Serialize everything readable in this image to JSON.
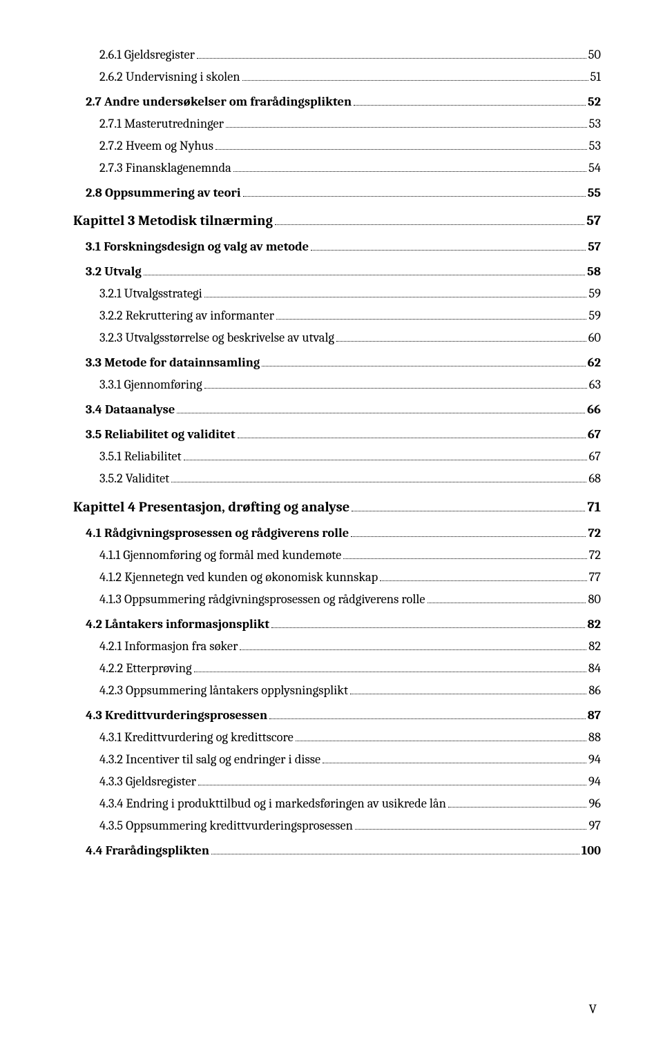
{
  "page_footer": "V",
  "toc": [
    {
      "level": 2,
      "label": "2.6.1 Gjeldsregister",
      "page": "50"
    },
    {
      "level": 2,
      "label": "2.6.2 Undervisning i skolen",
      "page": "51"
    },
    {
      "level": 1,
      "label": "2.7 Andre undersøkelser om frarådingsplikten",
      "page": "52"
    },
    {
      "level": 2,
      "label": "2.7.1 Masterutredninger",
      "page": "53"
    },
    {
      "level": 2,
      "label": "2.7.2 Hveem og Nyhus",
      "page": "53"
    },
    {
      "level": 2,
      "label": "2.7.3 Finansklagenemnda",
      "page": "54"
    },
    {
      "level": 1,
      "label": "2.8 Oppsummering av teori",
      "page": "55"
    },
    {
      "level": 0,
      "label": "Kapittel 3 Metodisk tilnærming",
      "page": "57"
    },
    {
      "level": 1,
      "label": "3.1 Forskningsdesign og valg av metode",
      "page": "57"
    },
    {
      "level": 1,
      "label": "3.2 Utvalg",
      "page": "58"
    },
    {
      "level": 2,
      "label": "3.2.1 Utvalgsstrategi",
      "page": "59"
    },
    {
      "level": 2,
      "label": "3.2.2 Rekruttering av informanter",
      "page": "59"
    },
    {
      "level": 2,
      "label": "3.2.3 Utvalgsstørrelse og beskrivelse av utvalg",
      "page": "60"
    },
    {
      "level": 1,
      "label": "3.3 Metode for datainnsamling",
      "page": "62"
    },
    {
      "level": 2,
      "label": "3.3.1 Gjennomføring",
      "page": "63"
    },
    {
      "level": 1,
      "label": "3.4 Dataanalyse",
      "page": "66"
    },
    {
      "level": 1,
      "label": "3.5 Reliabilitet og validitet",
      "page": "67"
    },
    {
      "level": 2,
      "label": "3.5.1 Reliabilitet",
      "page": "67"
    },
    {
      "level": 2,
      "label": "3.5.2 Validitet",
      "page": "68"
    },
    {
      "level": 0,
      "label": "Kapittel 4 Presentasjon, drøfting og analyse",
      "page": "71"
    },
    {
      "level": 1,
      "label": "4.1 Rådgivningsprosessen og rådgiverens rolle",
      "page": "72"
    },
    {
      "level": 2,
      "label": "4.1.1 Gjennomføring og formål med kundemøte",
      "page": "72"
    },
    {
      "level": 2,
      "label": "4.1.2 Kjennetegn ved kunden og økonomisk kunnskap",
      "page": "77"
    },
    {
      "level": 2,
      "label": "4.1.3 Oppsummering rådgivningsprosessen og rådgiverens rolle",
      "page": "80"
    },
    {
      "level": 1,
      "label": "4.2 Låntakers informasjonsplikt",
      "page": "82"
    },
    {
      "level": 2,
      "label": "4.2.1 Informasjon fra søker",
      "page": "82"
    },
    {
      "level": 2,
      "label": "4.2.2 Etterprøving",
      "page": "84"
    },
    {
      "level": 2,
      "label": "4.2.3 Oppsummering låntakers opplysningsplikt",
      "page": "86"
    },
    {
      "level": 1,
      "label": "4.3 Kredittvurderingsprosessen",
      "page": "87"
    },
    {
      "level": 2,
      "label": "4.3.1 Kredittvurdering og kredittscore",
      "page": "88"
    },
    {
      "level": 2,
      "label": "4.3.2 Incentiver til salg og endringer i disse",
      "page": "94"
    },
    {
      "level": 2,
      "label": "4.3.3 Gjeldsregister",
      "page": "94"
    },
    {
      "level": 2,
      "label": "4.3.4 Endring i produkttilbud og i markedsføringen av usikrede lån",
      "page": "96"
    },
    {
      "level": 2,
      "label": "4.3.5 Oppsummering kredittvurderingsprosessen",
      "page": "97"
    },
    {
      "level": 1,
      "label": "4.4 Frarådingsplikten",
      "page": "100"
    }
  ]
}
